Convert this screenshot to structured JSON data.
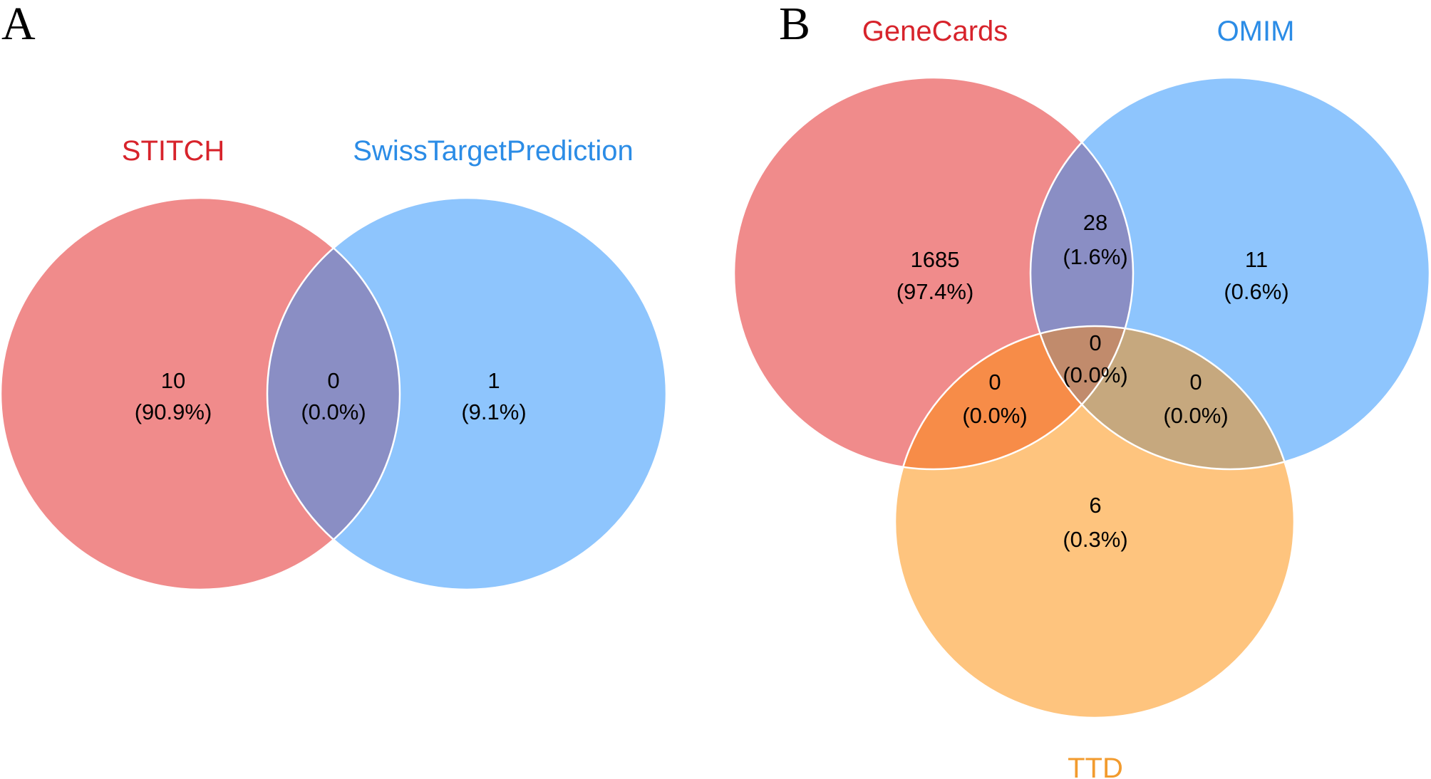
{
  "panel_a": {
    "letter": "A",
    "sets": [
      {
        "label": "STITCH",
        "color": "#d7232b",
        "fill": "#f08b8b"
      },
      {
        "label": "SwissTargetPrediction",
        "color": "#2b8ce6",
        "fill": "#8ec5fd"
      }
    ],
    "intersection_fill": "#8a8ec4",
    "regions": [
      {
        "id": "stitch_only",
        "count": "10",
        "percent": "(90.9%)"
      },
      {
        "id": "both",
        "count": "0",
        "percent": "(0.0%)"
      },
      {
        "id": "swiss_only",
        "count": "1",
        "percent": "(9.1%)"
      }
    ]
  },
  "panel_b": {
    "letter": "B",
    "sets": [
      {
        "label": "GeneCards",
        "color": "#d7232b",
        "fill": "#f08b8b"
      },
      {
        "label": "OMIM",
        "color": "#2b8ce6",
        "fill": "#8ec5fd"
      },
      {
        "label": "TTD",
        "color": "#f29b2e",
        "fill": "#fec47e"
      }
    ],
    "overlap_fills": {
      "genecards_omim": "#8a8ec4",
      "genecards_ttd": "#f78c48",
      "omim_ttd": "#c6a87e",
      "all_three": "#c18b6c"
    },
    "regions": [
      {
        "id": "genecards_only",
        "count": "1685",
        "percent": "(97.4%)"
      },
      {
        "id": "genecards_omim",
        "count": "28",
        "percent": "(1.6%)"
      },
      {
        "id": "omim_only",
        "count": "11",
        "percent": "(0.6%)"
      },
      {
        "id": "all_three",
        "count": "0",
        "percent": "(0.0%)"
      },
      {
        "id": "genecards_ttd",
        "count": "0",
        "percent": "(0.0%)"
      },
      {
        "id": "omim_ttd",
        "count": "0",
        "percent": "(0.0%)"
      },
      {
        "id": "ttd_only",
        "count": "6",
        "percent": "(0.3%)"
      }
    ]
  }
}
